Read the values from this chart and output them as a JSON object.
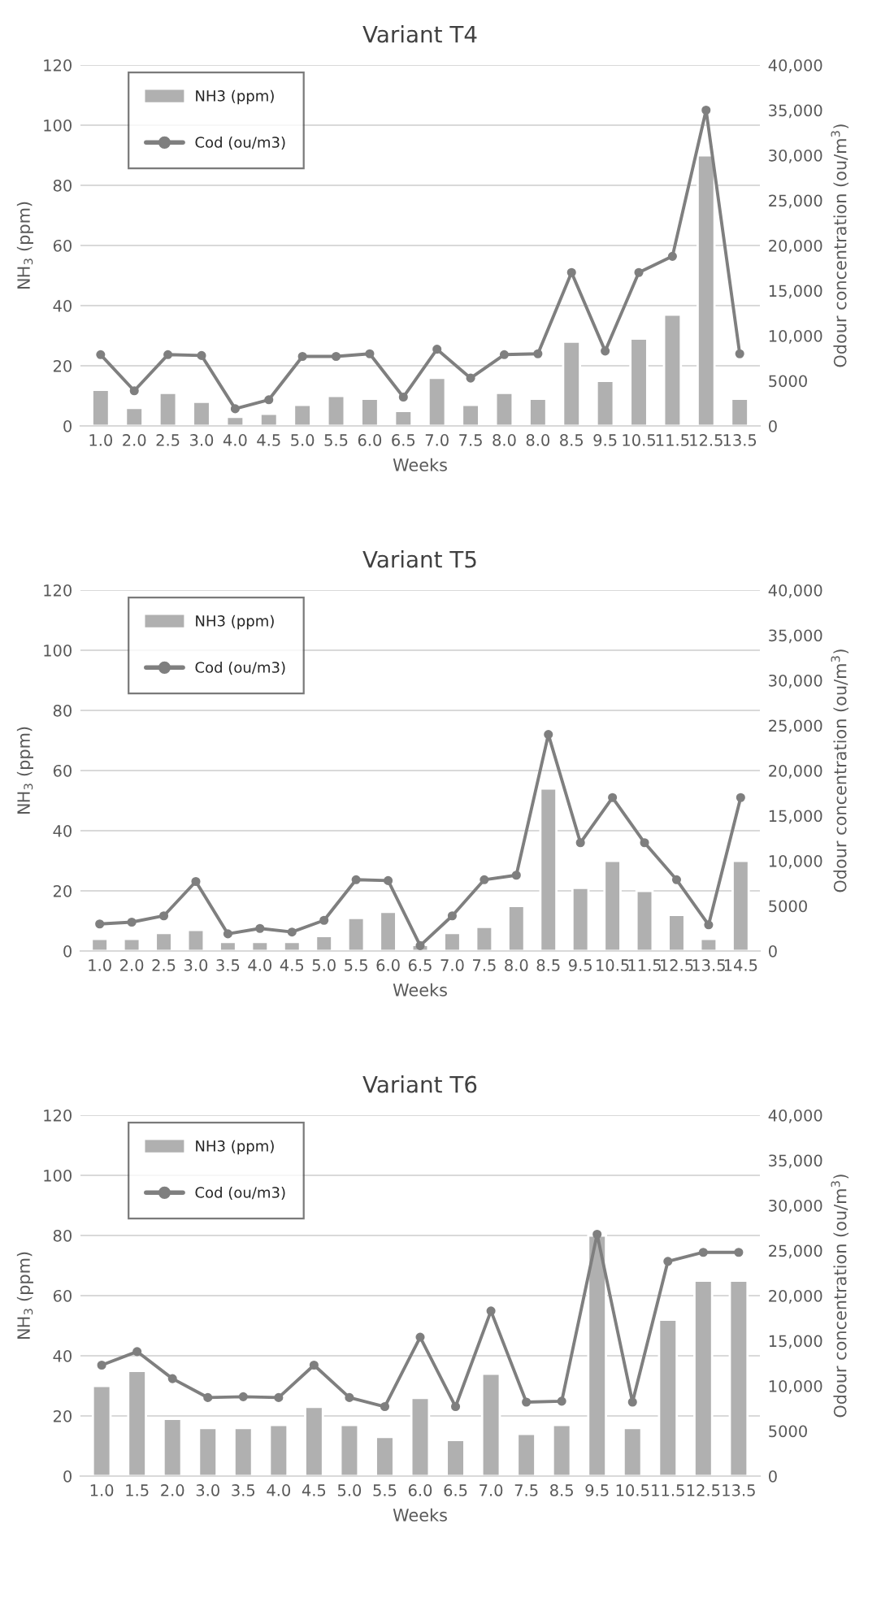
{
  "chart_data": [
    {
      "type": "bar",
      "title": "Variant T4",
      "xlabel": "Weeks",
      "ylabel": "NH$_{3}$ (ppm)",
      "y2label": "Odour concentration (ou/m$^{3}$)",
      "categories": [
        "1.0",
        "2.0",
        "2.5",
        "3.0",
        "4.0",
        "4.5",
        "5.0",
        "5.5",
        "6.0",
        "6.5",
        "7.0",
        "7.5",
        "8.0",
        "8.0",
        "8.5",
        "9.5",
        "10.5",
        "11.5",
        "12.5",
        "13.5"
      ],
      "series": [
        {
          "name": "NH3 (ppm)",
          "color": "#b0b0b0",
          "values": [
            12,
            6,
            11,
            8,
            3,
            4,
            7,
            10,
            9,
            5,
            16,
            7,
            11,
            9,
            28,
            15,
            29,
            37,
            90,
            9
          ]
        },
        {
          "name": "Cod (ou/m3)",
          "type": "line",
          "axis": "y2",
          "color": "#7f7f7f",
          "marker": "circle",
          "values": [
            7900,
            3900,
            7900,
            7800,
            1900,
            2900,
            7700,
            7700,
            8000,
            3200,
            8500,
            5300,
            7900,
            8000,
            17000,
            8300,
            17000,
            18800,
            35000,
            8000
          ]
        }
      ],
      "ylim": [
        0,
        120
      ],
      "yticks": [
        0,
        20,
        40,
        60,
        80,
        100,
        120
      ],
      "y2lim": [
        0,
        40000
      ],
      "y2ticks": [
        0,
        {
          "value": 5000,
          "label": "5000"
        },
        {
          "value": 10000,
          "label": "10,000"
        },
        {
          "value": 15000,
          "label": "15,000"
        },
        {
          "value": 20000,
          "label": "20,000"
        },
        {
          "value": 25000,
          "label": "25,000"
        },
        {
          "value": 30000,
          "label": "30,000"
        },
        {
          "value": 35000,
          "label": "35,000"
        },
        {
          "value": 40000,
          "label": "40,000"
        }
      ],
      "grid": "y",
      "legend": "top left"
    },
    {
      "type": "bar",
      "title": "Variant T5",
      "xlabel": "Weeks",
      "ylabel": "NH$_{3}$ (ppm)",
      "y2label": "Odour concentration (ou/m$^{3}$)",
      "categories": [
        "1.0",
        "2.0",
        "2.5",
        "3.0",
        "3.5",
        "4.0",
        "4.5",
        "5.0",
        "5.5",
        "6.0",
        "6.5",
        "7.0",
        "7.5",
        "8.0",
        "8.5",
        "9.5",
        "10.5",
        "11.5",
        "12.5",
        "13.5",
        "14.5"
      ],
      "series": [
        {
          "name": "NH3 (ppm)",
          "color": "#b0b0b0",
          "values": [
            4,
            4,
            6,
            7,
            3,
            3,
            3,
            5,
            11,
            13,
            2,
            6,
            8,
            15,
            54,
            21,
            30,
            20,
            12,
            4,
            30
          ]
        },
        {
          "name": "Cod (ou/m3)",
          "type": "line",
          "axis": "y2",
          "color": "#7f7f7f",
          "marker": "circle",
          "values": [
            3000,
            3200,
            3900,
            7700,
            1900,
            2500,
            2100,
            3400,
            7900,
            7800,
            600,
            3900,
            7900,
            8400,
            24000,
            12000,
            17000,
            12000,
            7900,
            2900,
            17000
          ]
        }
      ],
      "ylim": [
        0,
        120
      ],
      "yticks": [
        0,
        20,
        40,
        60,
        80,
        100,
        120
      ],
      "y2lim": [
        0,
        40000
      ],
      "y2ticks": [
        0,
        {
          "value": 5000,
          "label": "5000"
        },
        {
          "value": 10000,
          "label": "10,000"
        },
        {
          "value": 15000,
          "label": "15,000"
        },
        {
          "value": 20000,
          "label": "20,000"
        },
        {
          "value": 25000,
          "label": "25,000"
        },
        {
          "value": 30000,
          "label": "30,000"
        },
        {
          "value": 35000,
          "label": "35,000"
        },
        {
          "value": 40000,
          "label": "40,000"
        }
      ],
      "grid": "y",
      "legend": "top left"
    },
    {
      "type": "bar",
      "title": "Variant T6",
      "xlabel": "Weeks",
      "ylabel": "NH$_{3}$ (ppm)",
      "y2label": "Odour concentration (ou/m$^{3}$)",
      "categories": [
        "1.0",
        "1.5",
        "2.0",
        "3.0",
        "3.5",
        "4.0",
        "4.5",
        "5.0",
        "5.5",
        "6.0",
        "6.5",
        "7.0",
        "7.5",
        "8.5",
        "9.5",
        "10.5",
        "11.5",
        "12.5",
        "13.5"
      ],
      "series": [
        {
          "name": "NH3 (ppm)",
          "color": "#b0b0b0",
          "values": [
            30,
            35,
            19,
            16,
            16,
            17,
            23,
            17,
            13,
            26,
            12,
            34,
            14,
            17,
            80,
            16,
            52,
            65,
            65
          ]
        },
        {
          "name": "Cod (ou/m3)",
          "type": "line",
          "axis": "y2",
          "color": "#7f7f7f",
          "marker": "circle",
          "values": [
            12300,
            13800,
            10800,
            8700,
            8800,
            8700,
            12300,
            8700,
            7700,
            15400,
            7700,
            18300,
            8200,
            8300,
            26800,
            8200,
            23800,
            24800,
            24800
          ]
        }
      ],
      "ylim": [
        0,
        120
      ],
      "yticks": [
        0,
        20,
        40,
        60,
        80,
        100,
        120
      ],
      "y2lim": [
        0,
        40000
      ],
      "y2ticks": [
        0,
        {
          "value": 5000,
          "label": "5000"
        },
        {
          "value": 10000,
          "label": "10,000"
        },
        {
          "value": 15000,
          "label": "15,000"
        },
        {
          "value": 20000,
          "label": "20,000"
        },
        {
          "value": 25000,
          "label": "25,000"
        },
        {
          "value": 30000,
          "label": "30,000"
        },
        {
          "value": 35000,
          "label": "35,000"
        },
        {
          "value": 40000,
          "label": "40,000"
        }
      ],
      "grid": "y",
      "legend": "top left"
    }
  ]
}
